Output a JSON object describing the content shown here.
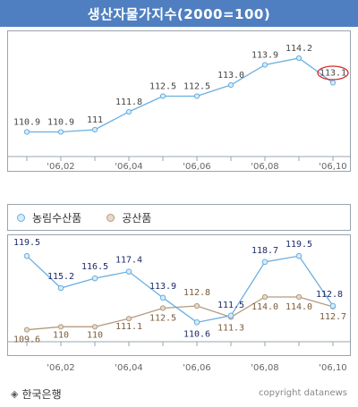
{
  "title": "생산자물가지수(2000=100)",
  "legend": {
    "agri": "농림수산품",
    "industrial": "공산품"
  },
  "footer": {
    "source": "한국은행",
    "copyright": "copyright datanews"
  },
  "colors": {
    "title_bg": "#4f7fc1",
    "agri_line": "#6aaee0",
    "agri_fill": "#d5ecf9",
    "industrial_line": "#b49a7e",
    "industrial_fill": "#e6dac8",
    "highlight": "#d42a2a"
  },
  "chart_data": [
    {
      "type": "line",
      "x_ticks": [
        "'06,02",
        "'06,04",
        "'06,06",
        "'06,08",
        "'06,10"
      ],
      "series": [
        {
          "values": [
            110.9,
            110.9,
            111.0,
            111.8,
            112.5,
            112.5,
            113.0,
            113.9,
            114.2,
            113.1
          ],
          "labels": [
            "110.9",
            "110.9",
            "111",
            "111.8",
            "112.5",
            "112.5",
            "113.0",
            "113.9",
            "114.2",
            "113.1"
          ]
        }
      ],
      "highlight_index": 9,
      "ylim": [
        110.0,
        114.6
      ],
      "grid": false
    },
    {
      "type": "line",
      "x_ticks": [
        "'06,02",
        "'06,04",
        "'06,06",
        "'06,08",
        "'06,10"
      ],
      "series": [
        {
          "name": "농림수산품",
          "values": [
            119.5,
            115.2,
            116.5,
            117.4,
            113.9,
            110.6,
            111.5,
            118.7,
            119.5,
            112.8
          ],
          "labels": [
            "119.5",
            "115.2",
            "116.5",
            "117.4",
            "113.9",
            "110.6",
            "111.5",
            "118.7",
            "119.5",
            "112.8"
          ]
        },
        {
          "name": "공산품",
          "values": [
            109.6,
            110.0,
            110.0,
            111.1,
            112.5,
            112.8,
            111.3,
            114.0,
            114.0,
            112.7
          ],
          "labels": [
            "109.6",
            "110",
            "110",
            "111.1",
            "112.5",
            "112.8",
            "111.3",
            "114.0",
            "114.0",
            "112.7"
          ]
        }
      ],
      "legend_position": "top-left",
      "grid": false
    }
  ]
}
